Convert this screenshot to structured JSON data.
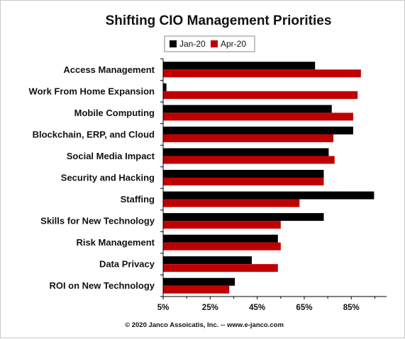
{
  "chart_data": {
    "type": "bar",
    "orientation": "horizontal",
    "title": "Shifting CIO Management Priorities",
    "categories": [
      "Access Management",
      "Work From Home Expansion",
      "Mobile Computing",
      "Blockchain, ERP, and Cloud",
      "Social Media Impact",
      "Security and Hacking",
      "Staffing",
      "Skills for New Technology",
      "Risk Management",
      "Data Privacy",
      "ROI on New Technology"
    ],
    "series": [
      {
        "name": "Jan-20",
        "color": "#000000",
        "values": [
          69.6,
          6.4,
          76.7,
          85.8,
          75.4,
          73.3,
          94.7,
          73.3,
          53.8,
          42.7,
          35.5
        ]
      },
      {
        "name": "Apr-20",
        "color": "#c00000",
        "values": [
          89.1,
          87.7,
          85.8,
          77.4,
          77.9,
          73.3,
          63.0,
          55.0,
          55.0,
          53.8,
          33.1
        ]
      }
    ],
    "xlim": [
      5,
      100
    ],
    "xticks": [
      5,
      25,
      45,
      65,
      85
    ],
    "tick_labels": [
      "5%",
      "25%",
      "45%",
      "65%",
      "85%"
    ],
    "legend_position": "top-center",
    "grid": false
  },
  "footer": "© 2020 Janco Assoicatis, Inc. -- www.e-janco.com"
}
